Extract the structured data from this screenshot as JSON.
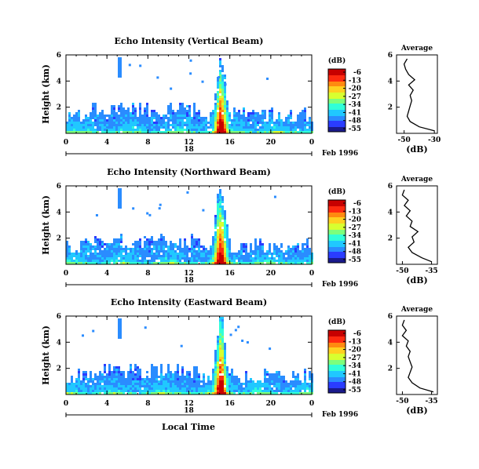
{
  "figure": {
    "time_axis_label": "Local Time",
    "date_label": "Feb 1996",
    "colorbar_unit": "(dB)",
    "colormap": [
      "#1a1a8c",
      "#2a3cff",
      "#2a8cff",
      "#20c8ff",
      "#30ffd8",
      "#7cff7c",
      "#d8ff30",
      "#ffd020",
      "#ff8a10",
      "#ff2a10",
      "#c80000"
    ]
  },
  "chart_data": [
    {
      "type": "heatmap",
      "title": "Echo Intensity (Vertical Beam)",
      "ylabel": "Height (km)",
      "x_ticks": [
        "0",
        "4",
        "8",
        "12",
        "16",
        "20",
        "0"
      ],
      "day_label": "18",
      "y_ticks": [
        "2",
        "4",
        "6"
      ],
      "xlim": [
        0,
        24
      ],
      "ylim": [
        0,
        6
      ],
      "colorbar": {
        "unit": "(dB)",
        "ticks": [
          "-6",
          "-13",
          "-20",
          "-27",
          "-34",
          "-41",
          "-48",
          "-55"
        ],
        "range": [
          -55,
          -6
        ]
      },
      "profile": {
        "title": "Average",
        "xlabel": "(dB)",
        "x_ticks": [
          "-50",
          "-30"
        ],
        "xlim": [
          -55,
          -28
        ],
        "heights": [
          0.2,
          0.5,
          0.9,
          1.3,
          1.7,
          2.1,
          2.5,
          2.9,
          3.3,
          3.7,
          4.1,
          4.5,
          4.9,
          5.3,
          5.7
        ],
        "values": [
          -30,
          -40,
          -46,
          -48,
          -47,
          -46,
          -45,
          -46,
          -44,
          -47,
          -43,
          -47,
          -49,
          -50,
          -48
        ]
      }
    },
    {
      "type": "heatmap",
      "title": "Echo Intensity (Northward Beam)",
      "ylabel": "Height (km)",
      "x_ticks": [
        "0",
        "4",
        "8",
        "12",
        "16",
        "20",
        "0"
      ],
      "day_label": "18",
      "y_ticks": [
        "2",
        "4",
        "6"
      ],
      "xlim": [
        0,
        24
      ],
      "ylim": [
        0,
        6
      ],
      "colorbar": {
        "unit": "(dB)",
        "ticks": [
          "-6",
          "-13",
          "-20",
          "-27",
          "-34",
          "-41",
          "-48",
          "-55"
        ],
        "range": [
          -55,
          -6
        ]
      },
      "profile": {
        "title": "Average",
        "xlabel": "(dB)",
        "x_ticks": [
          "-50",
          "-35"
        ],
        "xlim": [
          -53,
          -32
        ],
        "heights": [
          0.2,
          0.5,
          0.9,
          1.3,
          1.7,
          2.1,
          2.5,
          2.9,
          3.3,
          3.7,
          4.1,
          4.5,
          4.9,
          5.3,
          5.7
        ],
        "values": [
          -35,
          -40,
          -45,
          -47,
          -44,
          -45,
          -42,
          -46,
          -45,
          -48,
          -46,
          -49,
          -47,
          -50,
          -49
        ]
      }
    },
    {
      "type": "heatmap",
      "title": "Echo Intensity (Eastward Beam)",
      "ylabel": "Height (km)",
      "x_ticks": [
        "0",
        "4",
        "8",
        "12",
        "16",
        "20",
        "0"
      ],
      "day_label": "18",
      "y_ticks": [
        "2",
        "4",
        "6"
      ],
      "xlim": [
        0,
        24
      ],
      "ylim": [
        0,
        6
      ],
      "colorbar": {
        "unit": "(dB)",
        "ticks": [
          "-6",
          "-13",
          "-20",
          "-27",
          "-34",
          "-41",
          "-48",
          "-55"
        ],
        "range": [
          -55,
          -6
        ]
      },
      "profile": {
        "title": "Average",
        "xlabel": "(dB)",
        "x_ticks": [
          "-50",
          "-35"
        ],
        "xlim": [
          -53,
          -32
        ],
        "heights": [
          0.2,
          0.5,
          0.9,
          1.3,
          1.7,
          2.1,
          2.5,
          2.9,
          3.3,
          3.7,
          4.1,
          4.5,
          4.9,
          5.3,
          5.7
        ],
        "values": [
          -34,
          -41,
          -45,
          -47,
          -46,
          -45,
          -46,
          -47,
          -46,
          -48,
          -47,
          -50,
          -48,
          -50,
          -49
        ]
      }
    }
  ]
}
